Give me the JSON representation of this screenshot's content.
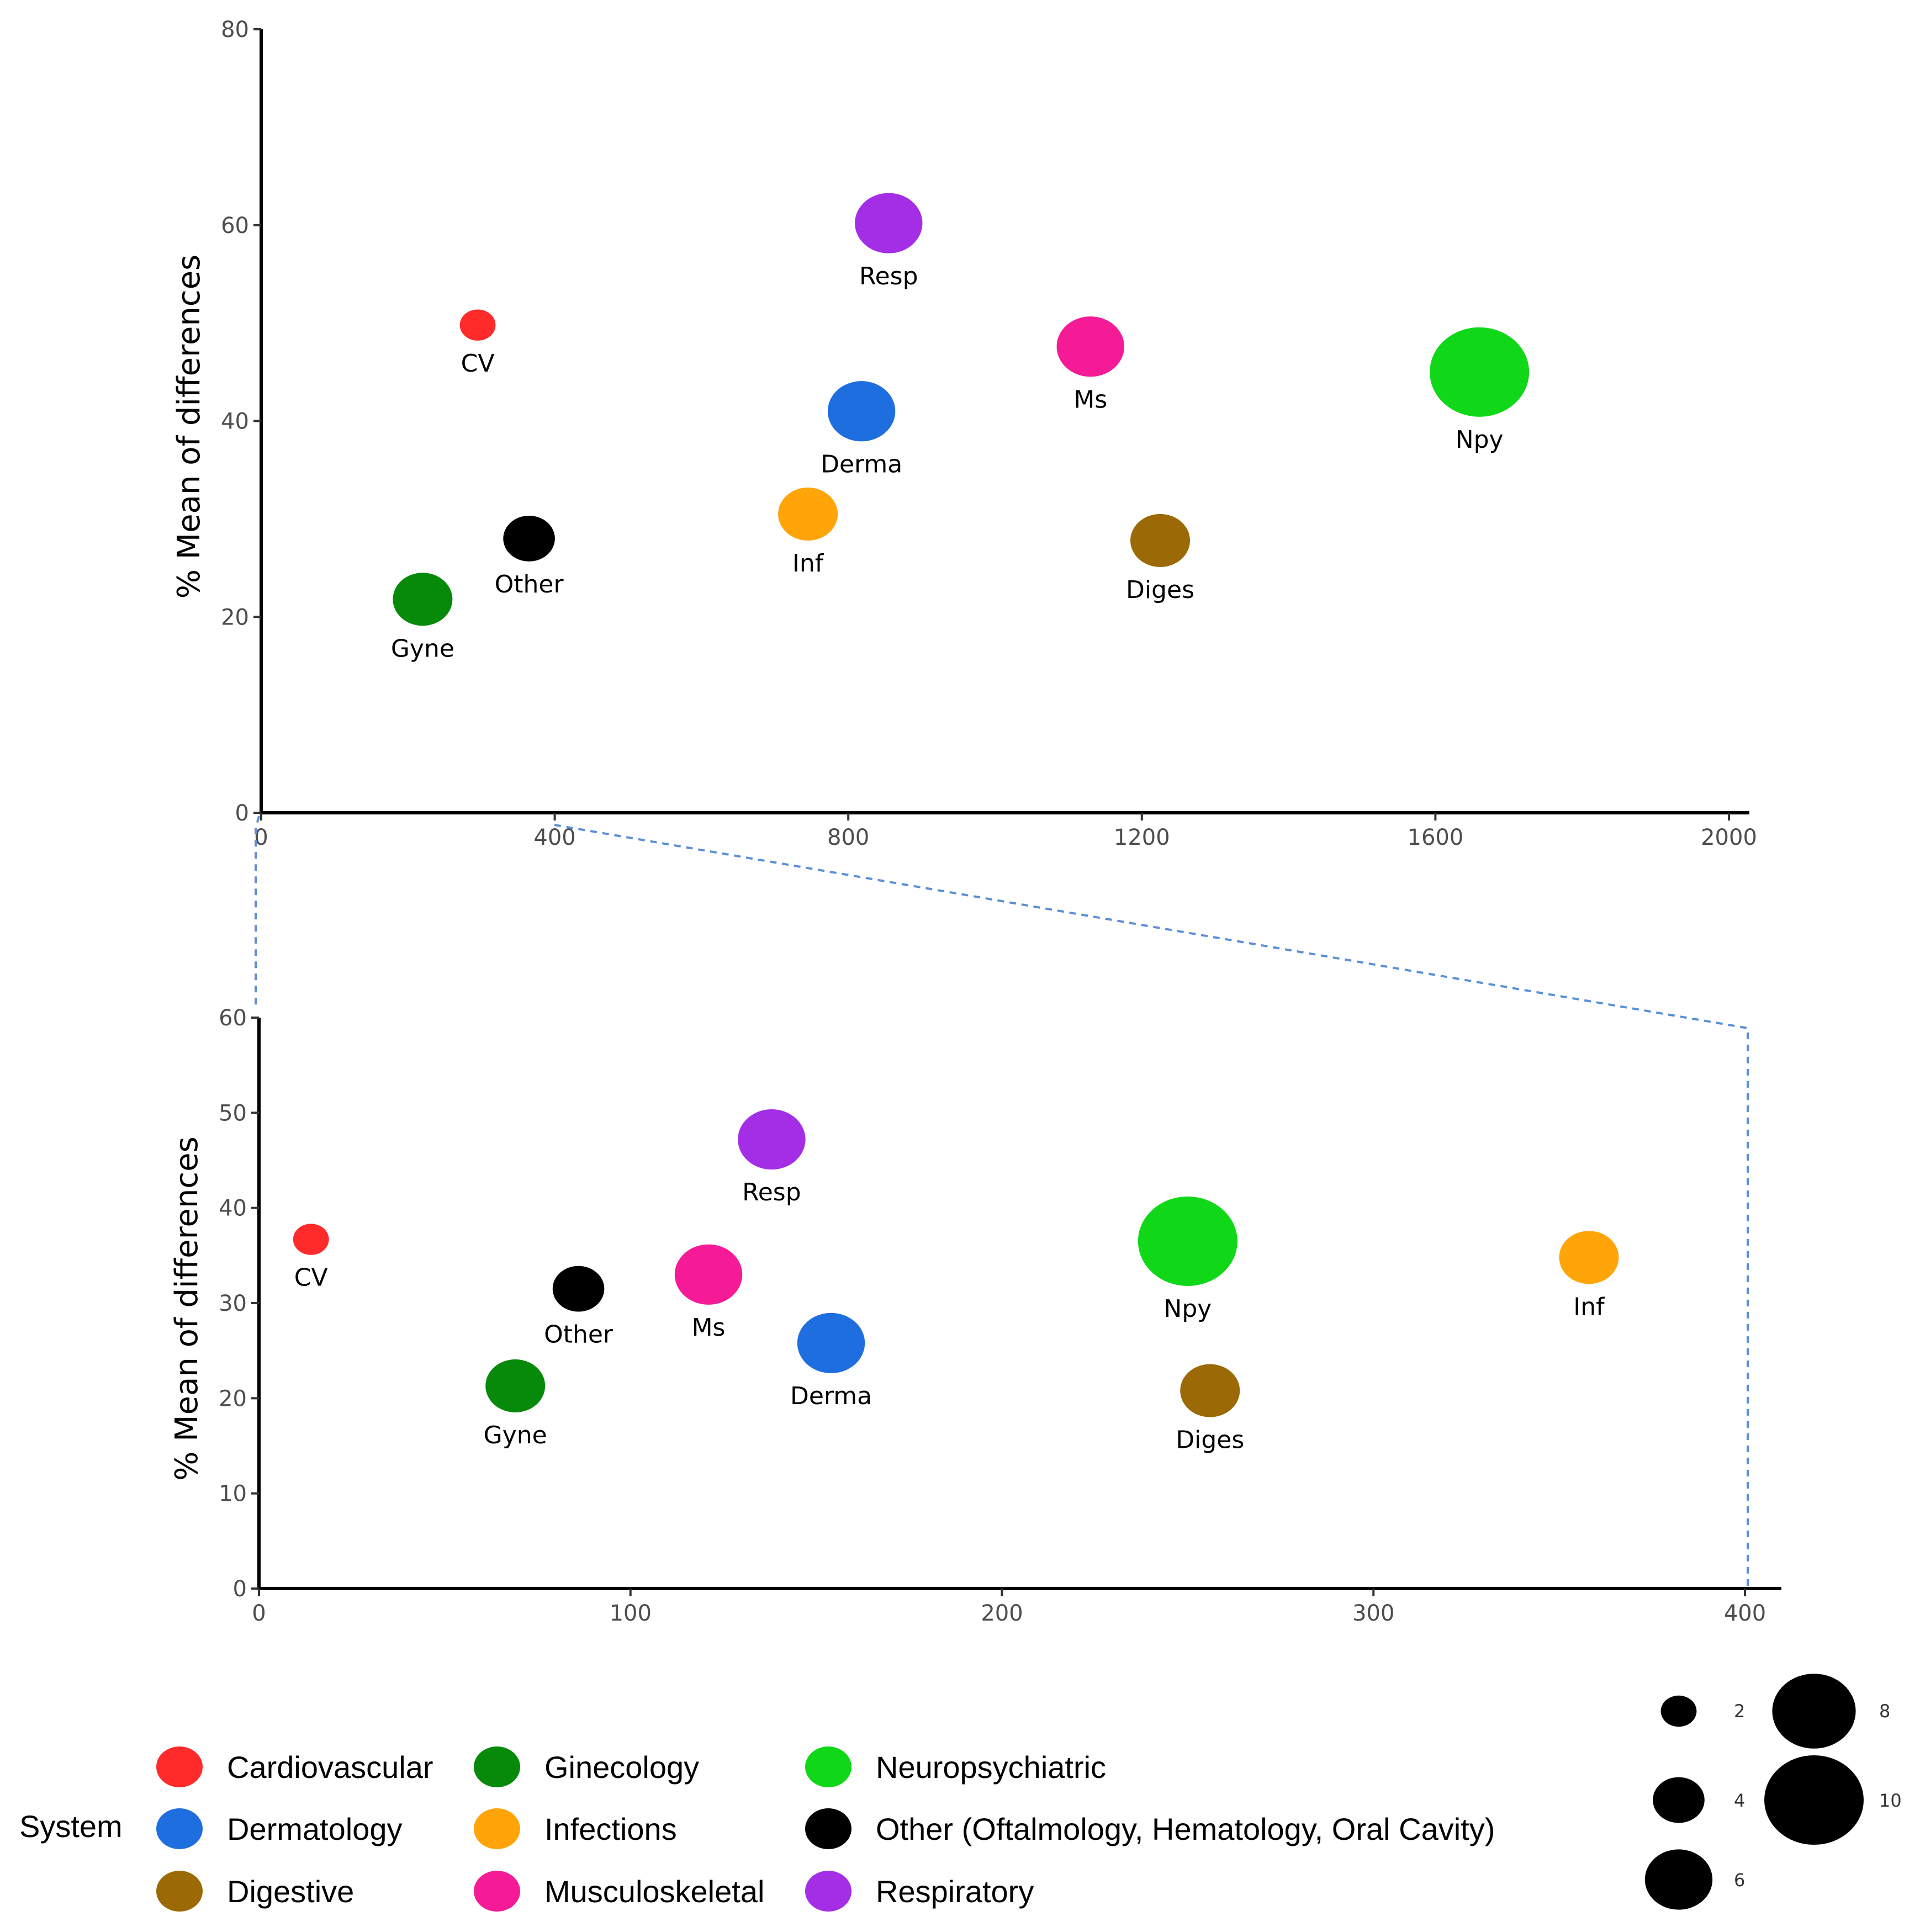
{
  "chart_data": [
    {
      "type": "scatter",
      "panel": "top",
      "ylabel": "% Mean of differences",
      "xlabel": "",
      "xlim": [
        0,
        2000
      ],
      "ylim": [
        0,
        80
      ],
      "xticks": [
        "0",
        "400",
        "800",
        "1200",
        "1600",
        "2000"
      ],
      "yticks": [
        "0",
        "20",
        "40",
        "60",
        "80"
      ],
      "points": [
        {
          "label": "CV",
          "system": "Cardiovascular",
          "x": 295,
          "y": 49.8,
          "size": 2
        },
        {
          "label": "Resp",
          "system": "Respiratory",
          "x": 855,
          "y": 60.2,
          "size": 6
        },
        {
          "label": "Ms",
          "system": "Musculoskeletal",
          "x": 1130,
          "y": 47.6,
          "size": 6
        },
        {
          "label": "Npy",
          "system": "Neuropsychiatric",
          "x": 1660,
          "y": 45.0,
          "size": 10
        },
        {
          "label": "Derma",
          "system": "Dermatology",
          "x": 818,
          "y": 41.0,
          "size": 6
        },
        {
          "label": "Other",
          "system": "Other (Oftalmology, Hematology, Oral Cavity)",
          "x": 365,
          "y": 28.0,
          "size": 4
        },
        {
          "label": "Inf",
          "system": "Infections",
          "x": 745,
          "y": 30.5,
          "size": 5
        },
        {
          "label": "Diges",
          "system": "Digestive",
          "x": 1225,
          "y": 27.8,
          "size": 5
        },
        {
          "label": "Gyne",
          "system": "Ginecology",
          "x": 220,
          "y": 21.8,
          "size": 5
        }
      ]
    },
    {
      "type": "scatter",
      "panel": "bottom (zoom of x 0-400)",
      "ylabel": "% Mean of differences",
      "xlabel": "",
      "xlim": [
        0,
        400
      ],
      "ylim": [
        0,
        60
      ],
      "xticks": [
        "0",
        "100",
        "200",
        "300",
        "400"
      ],
      "yticks": [
        "0",
        "10",
        "20",
        "30",
        "40",
        "50",
        "60"
      ],
      "points": [
        {
          "label": "CV",
          "system": "Cardiovascular",
          "x": 14,
          "y": 36.7,
          "size": 2
        },
        {
          "label": "Resp",
          "system": "Respiratory",
          "x": 138,
          "y": 47.2,
          "size": 6
        },
        {
          "label": "Npy",
          "system": "Neuropsychiatric",
          "x": 250,
          "y": 36.5,
          "size": 10
        },
        {
          "label": "Inf",
          "system": "Infections",
          "x": 358,
          "y": 34.8,
          "size": 5
        },
        {
          "label": "Other",
          "system": "Other (Oftalmology, Hematology, Oral Cavity)",
          "x": 86,
          "y": 31.5,
          "size": 4
        },
        {
          "label": "Ms",
          "system": "Musculoskeletal",
          "x": 121,
          "y": 33.0,
          "size": 6
        },
        {
          "label": "Derma",
          "system": "Dermatology",
          "x": 154,
          "y": 25.8,
          "size": 6
        },
        {
          "label": "Gyne",
          "system": "Ginecology",
          "x": 69,
          "y": 21.3,
          "size": 5
        },
        {
          "label": "Diges",
          "system": "Digestive",
          "x": 256,
          "y": 20.8,
          "size": 5
        }
      ]
    }
  ],
  "legend": {
    "title": "System",
    "items": [
      {
        "name": "Cardiovascular",
        "color": "#ff2a2a"
      },
      {
        "name": "Dermatology",
        "color": "#1f6ee0"
      },
      {
        "name": "Digestive",
        "color": "#9b6a06"
      },
      {
        "name": "Ginecology",
        "color": "#078a0a"
      },
      {
        "name": "Infections",
        "color": "#ffa50a"
      },
      {
        "name": "Musculoskeletal",
        "color": "#f51a96"
      },
      {
        "name": "Neuropsychiatric",
        "color": "#10d819"
      },
      {
        "name": "Other (Oftalmology, Hematology, Oral Cavity)",
        "color": "#000000"
      },
      {
        "name": "Respiratory",
        "color": "#a42ee6"
      }
    ]
  },
  "size_legend": {
    "items": [
      {
        "label": "2",
        "value": 2
      },
      {
        "label": "4",
        "value": 4
      },
      {
        "label": "6",
        "value": 6
      },
      {
        "label": "8",
        "value": 8
      },
      {
        "label": "10",
        "value": 10
      }
    ]
  },
  "colors": {
    "Cardiovascular": "#ff2a2a",
    "Dermatology": "#1f6ee0",
    "Digestive": "#9b6a06",
    "Ginecology": "#078a0a",
    "Infections": "#ffa50a",
    "Musculoskeletal": "#f51a96",
    "Neuropsychiatric": "#10d819",
    "Other (Oftalmology, Hematology, Oral Cavity)": "#000000",
    "Respiratory": "#a42ee6",
    "zoom_connector": "#5b8fd6"
  }
}
